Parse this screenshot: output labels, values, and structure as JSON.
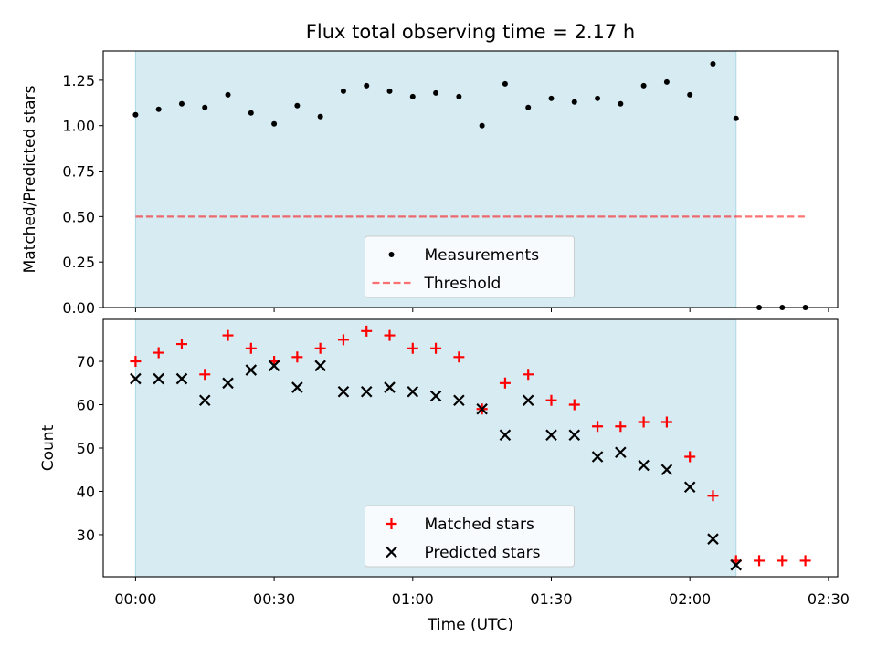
{
  "title": "Flux total observing time = 2.17 h",
  "colors": {
    "shade": "#add8e6",
    "measurement": "#000000",
    "threshold": "#ff0000",
    "matched": "#ff0000",
    "predicted": "#000000"
  },
  "chart_data": [
    {
      "type": "scatter",
      "ylabel": "Matched/Predicted stars",
      "ylim": [
        0,
        1.41
      ],
      "yticks": [
        0,
        0.25,
        0.5,
        0.75,
        1.0,
        1.25
      ],
      "ytick_labels": [
        "0.00",
        "0.25",
        "0.50",
        "0.75",
        "1.00",
        "1.25"
      ],
      "xlim": [
        "-00:07",
        "02:32"
      ],
      "shaded_span": [
        "00:00",
        "02:10"
      ],
      "legend": "lower center",
      "series": [
        {
          "name": "Measurements",
          "marker": "dot",
          "x": [
            "00:00",
            "00:05",
            "00:10",
            "00:15",
            "00:20",
            "00:25",
            "00:30",
            "00:35",
            "00:40",
            "00:45",
            "00:50",
            "00:55",
            "01:00",
            "01:05",
            "01:10",
            "01:15",
            "01:20",
            "01:25",
            "01:30",
            "01:35",
            "01:40",
            "01:45",
            "01:50",
            "01:55",
            "02:00",
            "02:05",
            "02:10",
            "02:15",
            "02:20",
            "02:25"
          ],
          "y": [
            1.06,
            1.09,
            1.12,
            1.1,
            1.17,
            1.07,
            1.01,
            1.11,
            1.05,
            1.19,
            1.22,
            1.19,
            1.16,
            1.18,
            1.16,
            1.0,
            1.23,
            1.1,
            1.15,
            1.13,
            1.15,
            1.12,
            1.22,
            1.24,
            1.17,
            1.34,
            1.04,
            0.0,
            0.0,
            0.0
          ]
        },
        {
          "name": "Threshold",
          "marker": "dashed-line",
          "x": [
            "00:00",
            "02:25"
          ],
          "y": [
            0.5,
            0.5
          ]
        }
      ]
    },
    {
      "type": "scatter",
      "xlabel": "Time (UTC)",
      "ylabel": "Count",
      "ylim": [
        20.3,
        79.7
      ],
      "yticks": [
        30,
        40,
        50,
        60,
        70
      ],
      "ytick_labels": [
        "30",
        "40",
        "50",
        "60",
        "70"
      ],
      "xlim": [
        "-00:07",
        "02:32"
      ],
      "xticks": [
        "00:00",
        "00:30",
        "01:00",
        "01:30",
        "02:00",
        "02:30"
      ],
      "shaded_span": [
        "00:00",
        "02:10"
      ],
      "legend": "lower center",
      "series": [
        {
          "name": "Matched stars",
          "marker": "plus",
          "x": [
            "00:00",
            "00:05",
            "00:10",
            "00:15",
            "00:20",
            "00:25",
            "00:30",
            "00:35",
            "00:40",
            "00:45",
            "00:50",
            "00:55",
            "01:00",
            "01:05",
            "01:10",
            "01:15",
            "01:20",
            "01:25",
            "01:30",
            "01:35",
            "01:40",
            "01:45",
            "01:50",
            "01:55",
            "02:00",
            "02:05",
            "02:10",
            "02:15",
            "02:20",
            "02:25"
          ],
          "y": [
            70,
            72,
            74,
            67,
            76,
            73,
            70,
            71,
            73,
            75,
            77,
            76,
            73,
            73,
            71,
            59,
            65,
            67,
            61,
            60,
            55,
            55,
            56,
            56,
            48,
            39,
            24,
            24,
            24,
            24
          ]
        },
        {
          "name": "Predicted stars",
          "marker": "cross",
          "x": [
            "00:00",
            "00:05",
            "00:10",
            "00:15",
            "00:20",
            "00:25",
            "00:30",
            "00:35",
            "00:40",
            "00:45",
            "00:50",
            "00:55",
            "01:00",
            "01:05",
            "01:10",
            "01:15",
            "01:20",
            "01:25",
            "01:30",
            "01:35",
            "01:40",
            "01:45",
            "01:50",
            "01:55",
            "02:00",
            "02:05",
            "02:10"
          ],
          "y": [
            66,
            66,
            66,
            61,
            65,
            68,
            69,
            64,
            69,
            63,
            63,
            64,
            63,
            62,
            61,
            59,
            53,
            61,
            53,
            53,
            48,
            49,
            46,
            45,
            41,
            29,
            23
          ]
        }
      ]
    }
  ]
}
